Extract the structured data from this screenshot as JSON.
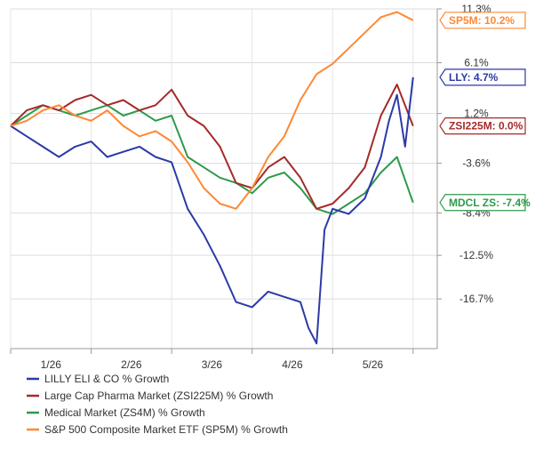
{
  "chart_data": {
    "type": "line",
    "title": "",
    "xlabel": "",
    "ylabel": "",
    "x_ticks": [
      "1/26",
      "2/26",
      "3/26",
      "4/26",
      "5/26"
    ],
    "x_tick_positions": [
      0.5,
      1.5,
      2.5,
      3.5,
      4.5
    ],
    "xlim": [
      0,
      5.3
    ],
    "y_ticks": [
      "11.3%",
      "6.1%",
      "1.2%",
      "-3.6%",
      "-8.4%",
      "-12.5%",
      "-16.7%"
    ],
    "y_tick_values": [
      11.3,
      6.1,
      1.2,
      -3.6,
      -8.4,
      -12.5,
      -16.7
    ],
    "ylim": [
      -21.5,
      11.3
    ],
    "grid": true,
    "legend_position": "bottom-left",
    "series": [
      {
        "name": "LILLY ELI & CO % Growth",
        "end_label": "LLY: 4.7%",
        "color": "#2b3aa8",
        "x": [
          0.0,
          0.2,
          0.4,
          0.6,
          0.8,
          1.0,
          1.2,
          1.4,
          1.6,
          1.8,
          2.0,
          2.2,
          2.4,
          2.6,
          2.8,
          3.0,
          3.2,
          3.4,
          3.6,
          3.7,
          3.8,
          3.9,
          4.0,
          4.2,
          4.4,
          4.6,
          4.7,
          4.8,
          4.9,
          5.0
        ],
        "values": [
          0.0,
          -1.0,
          -2.0,
          -3.0,
          -2.0,
          -1.5,
          -3.0,
          -2.5,
          -2.0,
          -3.0,
          -3.5,
          -8.0,
          -10.5,
          -13.5,
          -17.0,
          -17.5,
          -16.0,
          -16.5,
          -17.0,
          -19.5,
          -21.0,
          -10.0,
          -8.0,
          -8.5,
          -7.0,
          -3.0,
          0.5,
          3.0,
          -2.0,
          4.7
        ]
      },
      {
        "name": "Large Cap Pharma Market (ZSI225M) % Growth",
        "end_label": "ZSI225M: 0.0%",
        "color": "#a52a2a",
        "x": [
          0.0,
          0.2,
          0.4,
          0.6,
          0.8,
          1.0,
          1.2,
          1.4,
          1.6,
          1.8,
          2.0,
          2.2,
          2.4,
          2.6,
          2.8,
          3.0,
          3.2,
          3.4,
          3.6,
          3.8,
          4.0,
          4.2,
          4.4,
          4.6,
          4.8,
          5.0
        ],
        "values": [
          0.0,
          1.5,
          2.0,
          1.5,
          2.5,
          3.0,
          2.0,
          2.5,
          1.5,
          2.0,
          3.5,
          1.0,
          0.0,
          -2.0,
          -5.5,
          -6.0,
          -4.0,
          -3.0,
          -5.0,
          -8.0,
          -7.5,
          -6.0,
          -4.0,
          1.0,
          4.0,
          0.0
        ]
      },
      {
        "name": "Medical Market (ZS4M) % Growth",
        "end_label": "MDCL ZS: -7.4%",
        "color": "#2e9a4a",
        "x": [
          0.0,
          0.2,
          0.4,
          0.6,
          0.8,
          1.0,
          1.2,
          1.4,
          1.6,
          1.8,
          2.0,
          2.2,
          2.4,
          2.6,
          2.8,
          3.0,
          3.2,
          3.4,
          3.6,
          3.8,
          4.0,
          4.2,
          4.4,
          4.6,
          4.8,
          5.0
        ],
        "values": [
          0.0,
          1.0,
          2.0,
          1.5,
          1.0,
          1.5,
          2.0,
          1.0,
          1.5,
          0.5,
          1.0,
          -3.0,
          -4.0,
          -5.0,
          -5.5,
          -6.5,
          -5.0,
          -4.5,
          -6.0,
          -8.0,
          -8.5,
          -7.5,
          -6.5,
          -4.5,
          -3.0,
          -7.4
        ]
      },
      {
        "name": "S&P 500 Composite Market ETF (SP5M) % Growth",
        "end_label": "SP5M: 10.2%",
        "color": "#ff8833",
        "x": [
          0.0,
          0.2,
          0.4,
          0.6,
          0.8,
          1.0,
          1.2,
          1.4,
          1.6,
          1.8,
          2.0,
          2.2,
          2.4,
          2.6,
          2.8,
          3.0,
          3.2,
          3.4,
          3.6,
          3.8,
          4.0,
          4.2,
          4.4,
          4.6,
          4.8,
          5.0
        ],
        "values": [
          0.0,
          0.5,
          1.5,
          2.0,
          1.0,
          0.5,
          1.5,
          0.0,
          -1.0,
          -0.5,
          -1.5,
          -3.5,
          -6.0,
          -7.5,
          -8.0,
          -6.0,
          -3.0,
          -1.0,
          2.5,
          5.0,
          6.0,
          7.5,
          9.0,
          10.5,
          11.0,
          10.2
        ]
      }
    ]
  }
}
